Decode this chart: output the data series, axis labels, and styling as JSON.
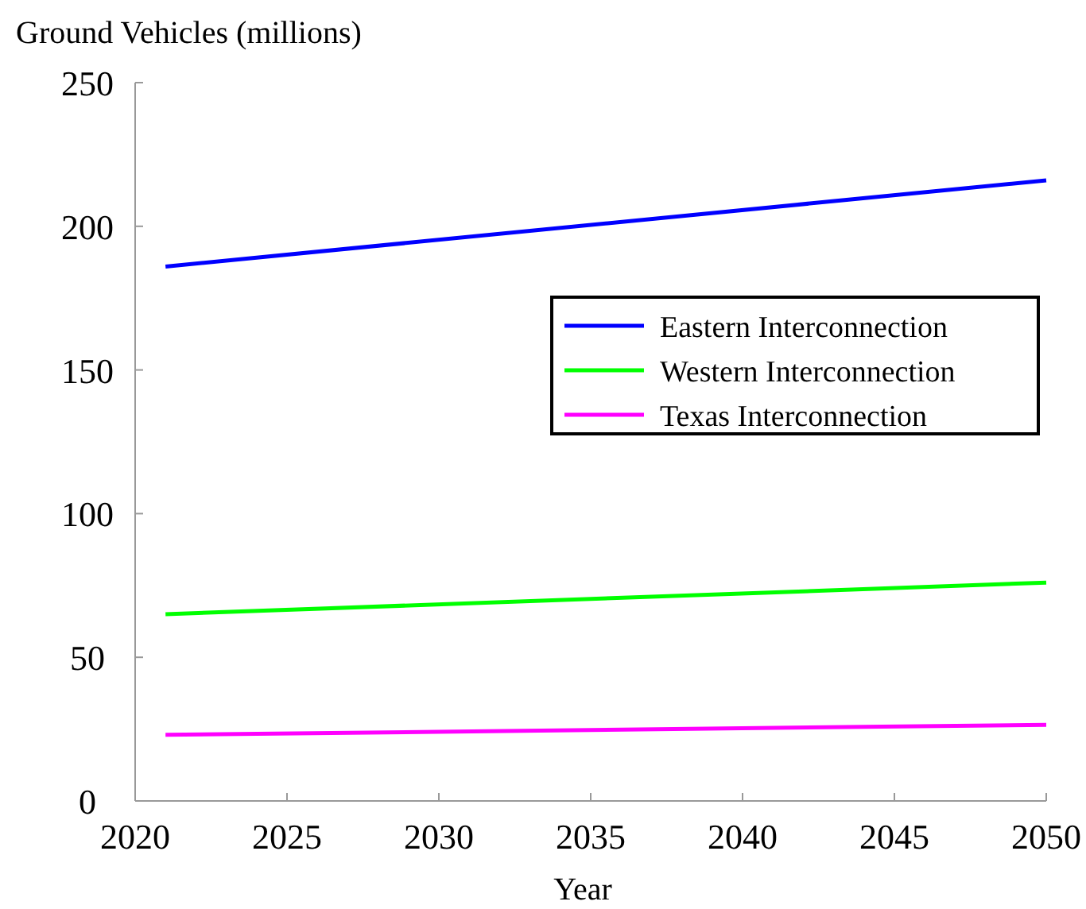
{
  "chart_data": {
    "type": "line",
    "ylabel": "Ground Vehicles (millions)",
    "xlabel": "Year",
    "x": [
      2021,
      2050
    ],
    "series": [
      {
        "name": "Eastern Interconnection",
        "color": "#0000ff",
        "values": [
          186,
          216
        ]
      },
      {
        "name": "Western Interconnection",
        "color": "#00ff00",
        "values": [
          65,
          76
        ]
      },
      {
        "name": "Texas Interconnection",
        "color": "#ff00ff",
        "values": [
          23,
          26.5
        ]
      }
    ],
    "xlim": [
      2020,
      2050
    ],
    "xticks": [
      2020,
      2025,
      2030,
      2035,
      2040,
      2045,
      2050
    ],
    "ylim": [
      0,
      250
    ],
    "yticks": [
      0,
      50,
      100,
      150,
      200,
      250
    ],
    "legend": "right",
    "grid": false,
    "marker": "none",
    "line_style": "solid"
  }
}
